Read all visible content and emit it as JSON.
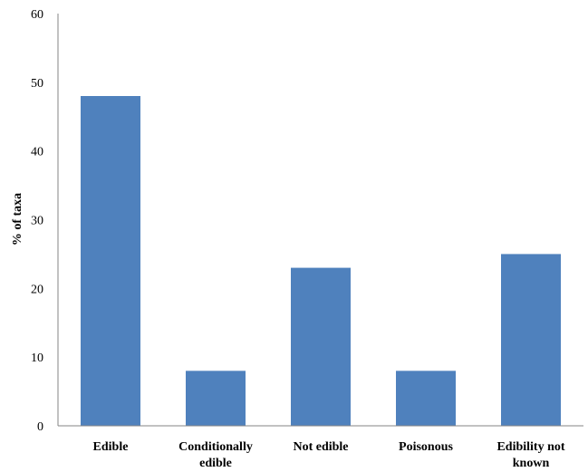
{
  "chart_data": {
    "type": "bar",
    "title": "",
    "xlabel": "",
    "ylabel": "% of taxa",
    "ylim": [
      0,
      60
    ],
    "yticks": [
      "0",
      "10",
      "20",
      "30",
      "40",
      "50",
      "60"
    ],
    "categories": [
      [
        "Edible"
      ],
      [
        "Conditionally",
        "edible"
      ],
      [
        "Not edible"
      ],
      [
        "Poisonous"
      ],
      [
        "Edibility not",
        "known"
      ]
    ],
    "values": [
      48,
      8,
      23,
      8,
      25
    ],
    "bar_color": "#4f81bd",
    "grid": false,
    "legend": "none"
  }
}
